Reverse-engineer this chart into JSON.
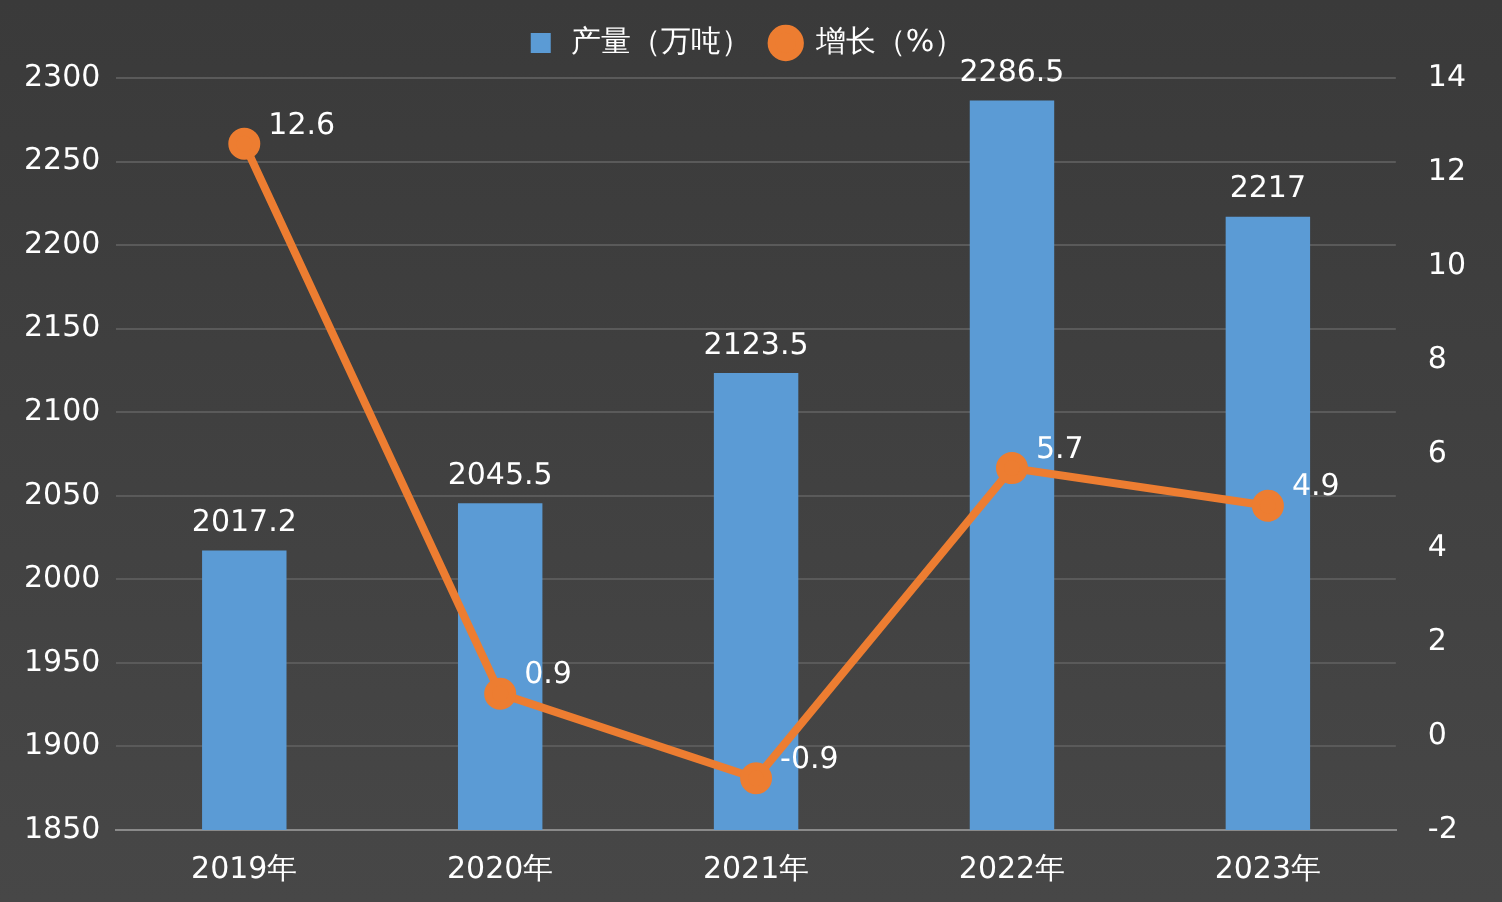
{
  "chart_data": {
    "type": "bar",
    "categories": [
      "2019年",
      "2020年",
      "2021年",
      "2022年",
      "2023年"
    ],
    "series": [
      {
        "name": "产量（万吨）",
        "color": "#5b9bd5",
        "values": [
          2017.2,
          2045.5,
          2123.5,
          2286.5,
          2217
        ]
      },
      {
        "name": "增长（%）",
        "type": "line",
        "axis": "y2",
        "color": "#ed7d31",
        "values": [
          12.6,
          0.9,
          -0.9,
          5.7,
          4.9
        ]
      }
    ],
    "ylim": [
      1850,
      2300
    ],
    "yticks": [
      1850,
      1900,
      1950,
      2000,
      2050,
      2100,
      2150,
      2200,
      2250,
      2300
    ],
    "y2lim": [
      -2,
      14
    ],
    "y2ticks": [
      -2,
      0,
      2,
      4,
      6,
      8,
      10,
      12,
      14
    ],
    "grid": "y",
    "legend": "top",
    "marker": "circle",
    "data_labels": true
  }
}
